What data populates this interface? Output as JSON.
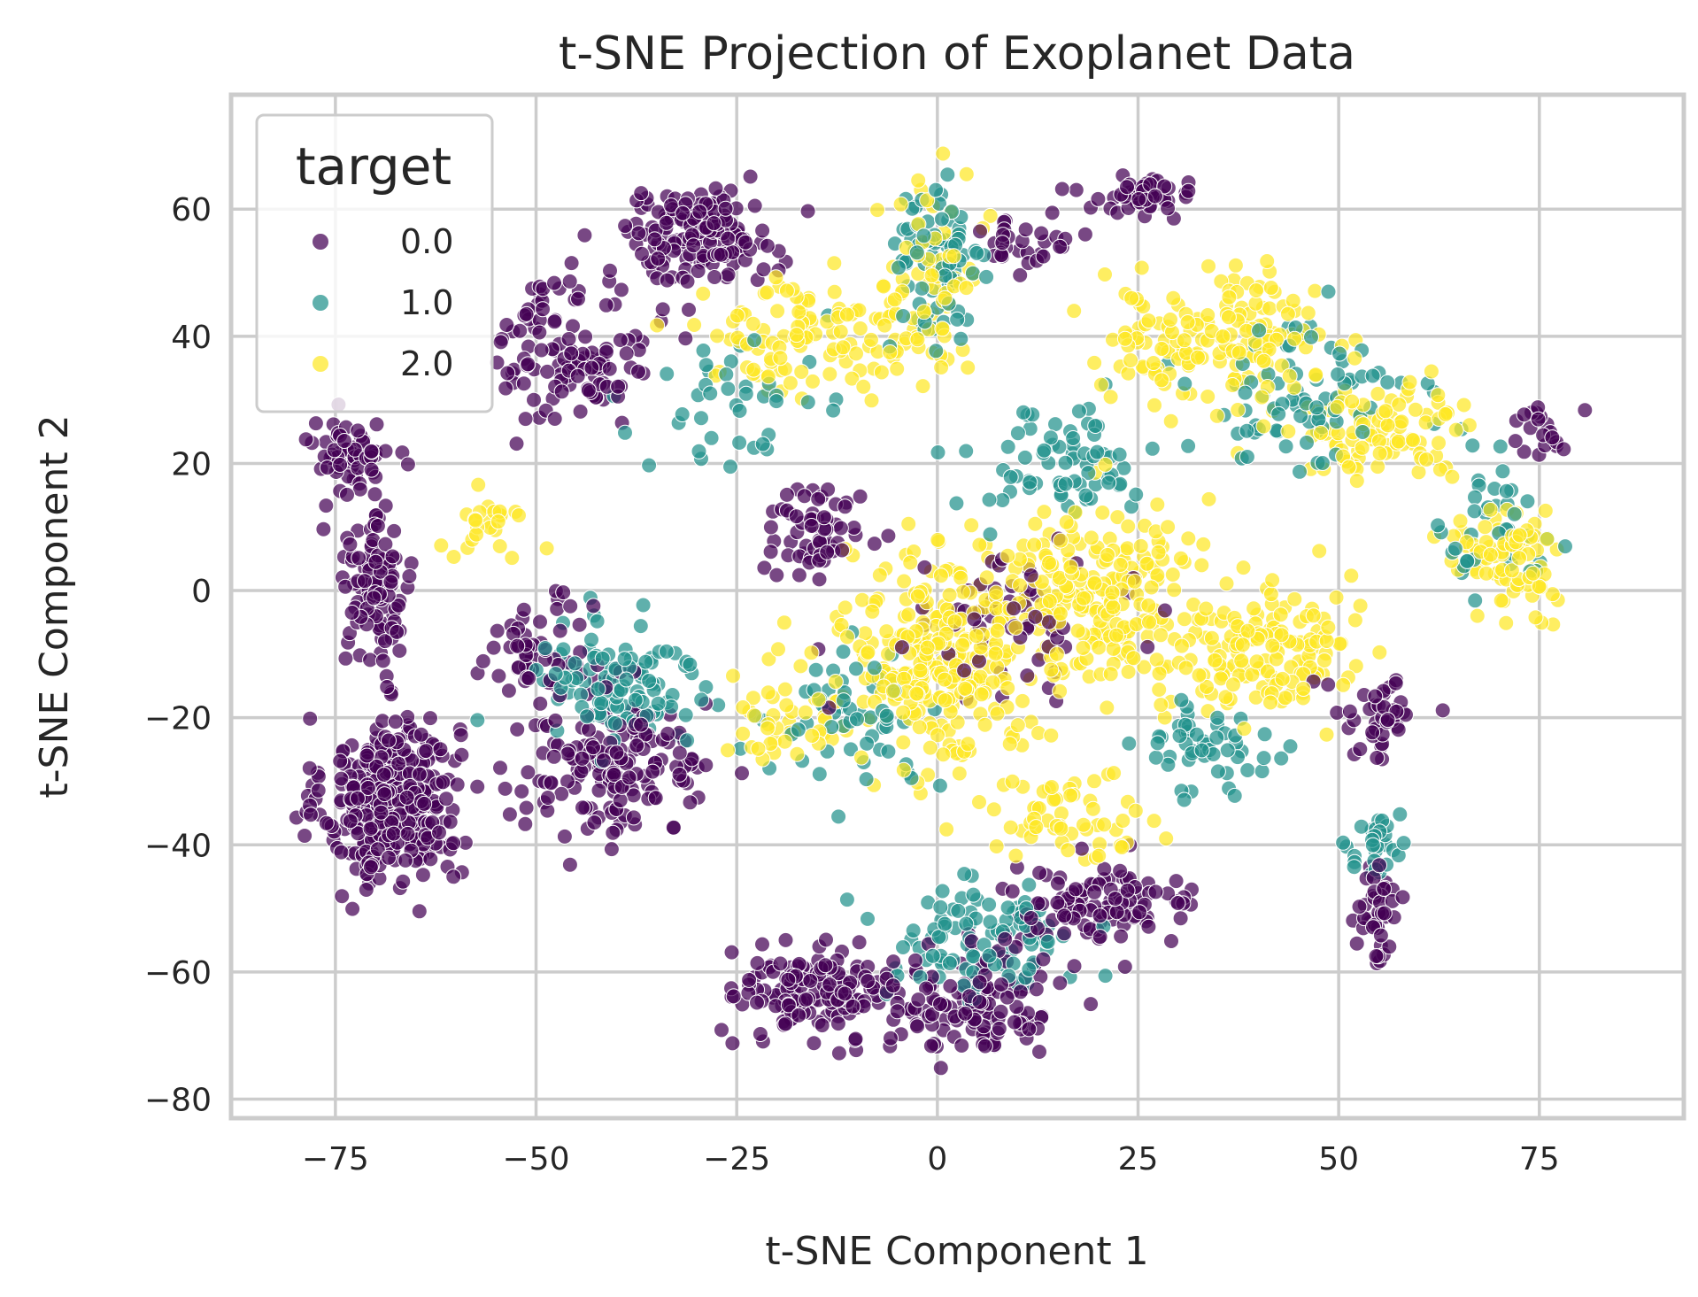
{
  "chart_data": {
    "type": "scatter",
    "title": "t-SNE Projection of Exoplanet Data",
    "xlabel": "t-SNE Component 1",
    "ylabel": "t-SNE Component 2",
    "xlim": [
      -88,
      93
    ],
    "ylim": [
      -83,
      78
    ],
    "xticks": [
      -75,
      -50,
      -25,
      0,
      25,
      50,
      75
    ],
    "yticks": [
      -80,
      -60,
      -40,
      -20,
      0,
      20,
      40,
      60
    ],
    "xtick_labels": [
      "−75",
      "−50",
      "−25",
      "0",
      "25",
      "50",
      "75"
    ],
    "ytick_labels": [
      "−80",
      "−60",
      "−40",
      "−20",
      "0",
      "20",
      "40",
      "60"
    ],
    "grid": true,
    "legend": {
      "title": "target",
      "placement": "top-left",
      "entries": [
        "0.0",
        "1.0",
        "2.0"
      ]
    },
    "colors": {
      "0.0": "#440154",
      "1.0": "#21918c",
      "2.0": "#fde725"
    },
    "series": [
      {
        "name": "0.0",
        "clusters": [
          {
            "center": [
              -68,
              -33
            ],
            "spread": [
              7,
              11
            ],
            "count": 360
          },
          {
            "center": [
              -70,
              2
            ],
            "spread": [
              4,
              12
            ],
            "count": 110
          },
          {
            "center": [
              -73,
              22
            ],
            "spread": [
              4,
              4
            ],
            "count": 55
          },
          {
            "center": [
              -30,
              56
            ],
            "spread": [
              8,
              6
            ],
            "count": 150
          },
          {
            "center": [
              -45,
              38
            ],
            "spread": [
              8,
              10
            ],
            "count": 120
          },
          {
            "center": [
              -40,
              -28
            ],
            "spread": [
              10,
              9
            ],
            "count": 160
          },
          {
            "center": [
              -50,
              -10
            ],
            "spread": [
              6,
              7
            ],
            "count": 60
          },
          {
            "center": [
              -15,
              -63
            ],
            "spread": [
              8,
              6
            ],
            "count": 150
          },
          {
            "center": [
              5,
              -65
            ],
            "spread": [
              9,
              7
            ],
            "count": 130
          },
          {
            "center": [
              20,
              -50
            ],
            "spread": [
              10,
              5
            ],
            "count": 110
          },
          {
            "center": [
              -15,
              10
            ],
            "spread": [
              6,
              6
            ],
            "count": 60
          },
          {
            "center": [
              10,
              -5
            ],
            "spread": [
              10,
              8
            ],
            "count": 60
          },
          {
            "center": [
              25,
              62
            ],
            "spread": [
              6,
              3
            ],
            "count": 50
          },
          {
            "center": [
              55,
              -50
            ],
            "spread": [
              2,
              7
            ],
            "count": 40
          },
          {
            "center": [
              75,
              25
            ],
            "spread": [
              3,
              4
            ],
            "count": 20
          },
          {
            "center": [
              55,
              -20
            ],
            "spread": [
              5,
              6
            ],
            "count": 40
          },
          {
            "center": [
              10,
              55
            ],
            "spread": [
              6,
              4
            ],
            "count": 30
          }
        ]
      },
      {
        "name": "1.0",
        "clusters": [
          {
            "center": [
              -40,
              -15
            ],
            "spread": [
              9,
              9
            ],
            "count": 110
          },
          {
            "center": [
              0,
              50
            ],
            "spread": [
              5,
              12
            ],
            "count": 80
          },
          {
            "center": [
              5,
              -55
            ],
            "spread": [
              10,
              8
            ],
            "count": 100
          },
          {
            "center": [
              15,
              20
            ],
            "spread": [
              10,
              8
            ],
            "count": 70
          },
          {
            "center": [
              -10,
              -20
            ],
            "spread": [
              8,
              8
            ],
            "count": 60
          },
          {
            "center": [
              45,
              30
            ],
            "spread": [
              12,
              10
            ],
            "count": 80
          },
          {
            "center": [
              55,
              -40
            ],
            "spread": [
              3,
              5
            ],
            "count": 30
          },
          {
            "center": [
              35,
              -25
            ],
            "spread": [
              8,
              6
            ],
            "count": 50
          },
          {
            "center": [
              70,
              10
            ],
            "spread": [
              6,
              10
            ],
            "count": 40
          },
          {
            "center": [
              -25,
              30
            ],
            "spread": [
              10,
              8
            ],
            "count": 40
          }
        ]
      },
      {
        "name": "2.0",
        "clusters": [
          {
            "center": [
              0,
              -10
            ],
            "spread": [
              10,
              14
            ],
            "count": 300
          },
          {
            "center": [
              20,
              0
            ],
            "spread": [
              10,
              12
            ],
            "count": 200
          },
          {
            "center": [
              40,
              -10
            ],
            "spread": [
              10,
              9
            ],
            "count": 150
          },
          {
            "center": [
              -15,
              40
            ],
            "spread": [
              12,
              8
            ],
            "count": 120
          },
          {
            "center": [
              35,
              40
            ],
            "spread": [
              12,
              8
            ],
            "count": 160
          },
          {
            "center": [
              55,
              25
            ],
            "spread": [
              10,
              6
            ],
            "count": 100
          },
          {
            "center": [
              72,
              5
            ],
            "spread": [
              6,
              7
            ],
            "count": 80
          },
          {
            "center": [
              0,
              50
            ],
            "spread": [
              5,
              12
            ],
            "count": 60
          },
          {
            "center": [
              -20,
              -20
            ],
            "spread": [
              6,
              6
            ],
            "count": 40
          },
          {
            "center": [
              15,
              -35
            ],
            "spread": [
              10,
              6
            ],
            "count": 60
          },
          {
            "center": [
              -55,
              10
            ],
            "spread": [
              5,
              4
            ],
            "count": 25
          }
        ]
      }
    ]
  }
}
